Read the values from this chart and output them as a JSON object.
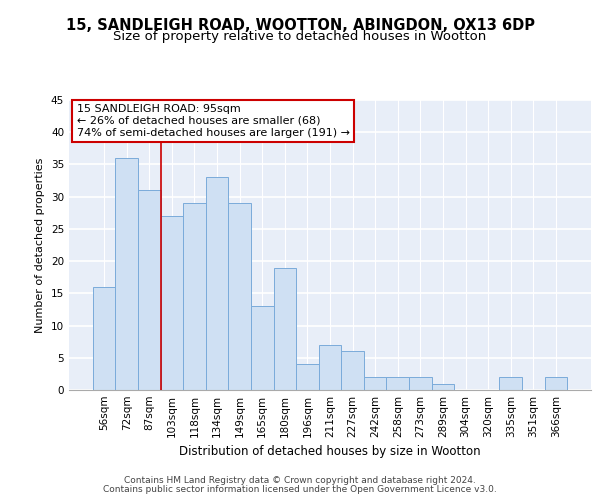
{
  "title1": "15, SANDLEIGH ROAD, WOOTTON, ABINGDON, OX13 6DP",
  "title2": "Size of property relative to detached houses in Wootton",
  "xlabel": "Distribution of detached houses by size in Wootton",
  "ylabel": "Number of detached properties",
  "categories": [
    "56sqm",
    "72sqm",
    "87sqm",
    "103sqm",
    "118sqm",
    "134sqm",
    "149sqm",
    "165sqm",
    "180sqm",
    "196sqm",
    "211sqm",
    "227sqm",
    "242sqm",
    "258sqm",
    "273sqm",
    "289sqm",
    "304sqm",
    "320sqm",
    "335sqm",
    "351sqm",
    "366sqm"
  ],
  "values": [
    16,
    36,
    31,
    27,
    29,
    33,
    29,
    13,
    19,
    4,
    7,
    6,
    2,
    2,
    2,
    1,
    0,
    0,
    2,
    0,
    2
  ],
  "bar_color": "#cfe0f3",
  "bar_edge_color": "#7aabda",
  "bar_width": 1.0,
  "red_line_x": 2.5,
  "annotation_line1": "15 SANDLEIGH ROAD: 95sqm",
  "annotation_line2": "← 26% of detached houses are smaller (68)",
  "annotation_line3": "74% of semi-detached houses are larger (191) →",
  "annotation_box_color": "#ffffff",
  "annotation_box_edge_color": "#cc0000",
  "footer1": "Contains HM Land Registry data © Crown copyright and database right 2024.",
  "footer2": "Contains public sector information licensed under the Open Government Licence v3.0.",
  "bg_color": "#e8eef8",
  "grid_color": "#ffffff",
  "ylim": [
    0,
    45
  ],
  "yticks": [
    0,
    5,
    10,
    15,
    20,
    25,
    30,
    35,
    40,
    45
  ],
  "title1_fontsize": 10.5,
  "title2_fontsize": 9.5,
  "xlabel_fontsize": 8.5,
  "ylabel_fontsize": 8,
  "tick_fontsize": 7.5,
  "annotation_fontsize": 8,
  "footer_fontsize": 6.5
}
